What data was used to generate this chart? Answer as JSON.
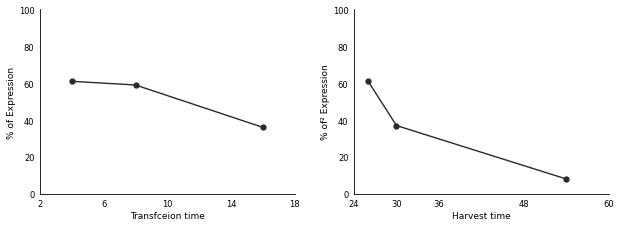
{
  "left": {
    "x": [
      4,
      8,
      16
    ],
    "y": [
      61,
      59,
      36
    ],
    "xlabel": "Transfceion time",
    "ylabel": "% of Expression",
    "xlim": [
      2,
      18
    ],
    "ylim": [
      0,
      100
    ],
    "xticks": [
      2,
      6,
      10,
      14,
      18
    ],
    "yticks": [
      0,
      20,
      40,
      60,
      80,
      100
    ]
  },
  "right": {
    "x": [
      26,
      30,
      54
    ],
    "y": [
      61,
      37,
      8
    ],
    "xlabel": "Harvest time",
    "ylabel": "% of² Expression",
    "xlim": [
      24,
      60
    ],
    "ylim": [
      0,
      100
    ],
    "xticks": [
      24,
      30,
      36,
      48,
      60
    ],
    "yticks": [
      0,
      20,
      40,
      60,
      80,
      100
    ]
  },
  "line_color": "#2a2a2a",
  "marker": "o",
  "markersize": 3.5,
  "linewidth": 1.0,
  "background_color": "#ffffff",
  "label_fontsize": 6.5,
  "tick_fontsize": 6.0
}
